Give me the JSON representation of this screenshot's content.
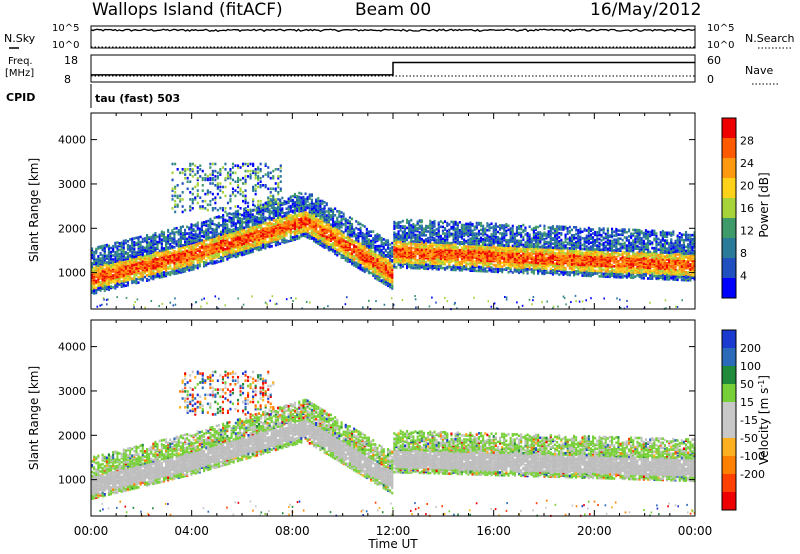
{
  "header": {
    "station": "Wallops Island (fitACF)",
    "beam": "Beam 00",
    "date": "16/May/2012"
  },
  "labels": {
    "nsky": "N.Sky",
    "nsearch": "N.Search",
    "freq_line1": "Freq.",
    "freq_line2": "[MHz]",
    "nave": "Nave",
    "cpid": "CPID",
    "cpid_value": "tau (fast) 503",
    "power_cbar": "Power [dB]",
    "velocity_cbar": "Velocity [m s",
    "velocity_exp": "-1",
    "velocity_close": "]",
    "time_axis": "Time UT",
    "slant_range": "Slant Range [km]"
  },
  "colors": {
    "power_scale": [
      "#0000ff",
      "#2050c0",
      "#2a7a9a",
      "#3f9a6a",
      "#a6d23a",
      "#ffd21a",
      "#ff9a10",
      "#ff5a00",
      "#ee0000"
    ],
    "velocity_scale": [
      "#1a3ad0",
      "#2a6ab8",
      "#1e8a3a",
      "#78d038",
      "#c8c8c8",
      "#c8c8c8",
      "#ffb020",
      "#ff8000",
      "#ff4000",
      "#ee0000"
    ],
    "ground_scatter": "#bebebe"
  },
  "chart_data": [
    {
      "type": "line",
      "name": "noise",
      "left_ticks": [
        "10^5",
        "10^0"
      ],
      "right_ticks": [
        "10^5",
        "10^0"
      ],
      "nsky_level": 10000,
      "nsearch_level": 1
    },
    {
      "type": "line",
      "name": "frequency-nave",
      "left_ticks": [
        "18",
        "8"
      ],
      "right_ticks": [
        "60",
        "0"
      ],
      "freq_segments": [
        {
          "t0": 0,
          "t1": 12,
          "mhz": 10.2
        },
        {
          "t0": 12,
          "t1": 24,
          "mhz": 15.6
        }
      ],
      "nave_level": 0
    },
    {
      "type": "heatmap",
      "name": "power",
      "xlabel": "Time UT",
      "ylabel": "Slant Range [km]",
      "xlim": [
        0,
        24
      ],
      "ylim": [
        180,
        4600
      ],
      "y_ticks": [
        1000,
        2000,
        3000,
        4000
      ],
      "x_ticks": [
        "00:00",
        "04:00",
        "08:00",
        "12:00",
        "16:00",
        "20:00",
        "00:00"
      ],
      "colorbar_ticks": [
        "4",
        "8",
        "12",
        "16",
        "20",
        "24",
        "28"
      ],
      "colorbar_range": [
        0,
        30
      ],
      "bands": [
        {
          "t0": 0.0,
          "t1": 4.0,
          "r0": 900,
          "r1": 1450
        },
        {
          "t0": 4.0,
          "t1": 8.5,
          "r0": 1450,
          "r1": 2200
        },
        {
          "t0": 8.5,
          "t1": 12.0,
          "r0": 2200,
          "r1": 1000
        },
        {
          "t0": 12.0,
          "t1": 24.0,
          "r0": 1500,
          "r1": 1200
        }
      ],
      "patches": [
        {
          "t0": 3.2,
          "t1": 7.5,
          "r0": 2400,
          "r1": 3500
        }
      ]
    },
    {
      "type": "heatmap",
      "name": "velocity",
      "xlabel": "Time UT",
      "ylabel": "Slant Range [km]",
      "xlim": [
        0,
        24
      ],
      "ylim": [
        180,
        4600
      ],
      "y_ticks": [
        1000,
        2000,
        3000,
        4000
      ],
      "x_ticks": [
        "00:00",
        "04:00",
        "08:00",
        "12:00",
        "16:00",
        "20:00",
        "00:00"
      ],
      "colorbar_ticks": [
        "200",
        "100",
        "50",
        "15",
        "-15",
        "-50",
        "-100",
        "-200"
      ],
      "colorbar_range": [
        -250,
        250
      ],
      "ground_scatter_bands": [
        {
          "t0": 0.0,
          "t1": 4.0,
          "r0": 900,
          "r1": 1450
        },
        {
          "t0": 4.0,
          "t1": 8.5,
          "r0": 1450,
          "r1": 2200
        },
        {
          "t0": 8.5,
          "t1": 12.0,
          "r0": 2200,
          "r1": 1000
        },
        {
          "t0": 12.0,
          "t1": 24.0,
          "r0": 1500,
          "r1": 1300
        }
      ],
      "patches": [
        {
          "t0": 3.5,
          "t1": 7.2,
          "r0": 2500,
          "r1": 3500
        }
      ]
    }
  ]
}
